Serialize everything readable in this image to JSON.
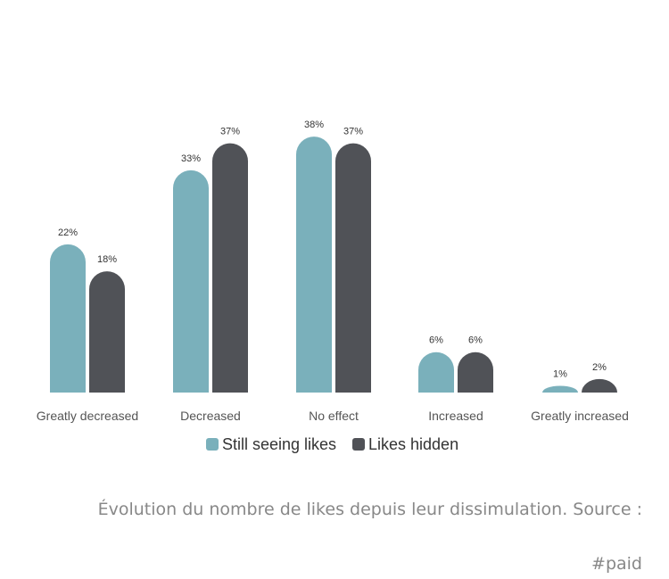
{
  "chart_data": {
    "type": "bar",
    "categories": [
      "Greatly decreased",
      "Decreased",
      "No effect",
      "Increased",
      "Greatly increased"
    ],
    "series": [
      {
        "name": "Still seeing likes",
        "values": [
          22,
          33,
          38,
          6,
          1
        ],
        "labels": [
          "22%",
          "33%",
          "38%",
          "6%",
          "1%"
        ],
        "color": "#7ab0bb"
      },
      {
        "name": "Likes hidden",
        "values": [
          18,
          37,
          37,
          6,
          2
        ],
        "labels": [
          "18%",
          "37%",
          "37%",
          "6%",
          "2%"
        ],
        "color": "#505257"
      }
    ],
    "ylim": [
      0,
      40
    ],
    "legend": "bottom",
    "grid": false
  },
  "caption": "Évolution du nombre de likes depuis leur dissimulation. Source :",
  "tag": "#paid"
}
